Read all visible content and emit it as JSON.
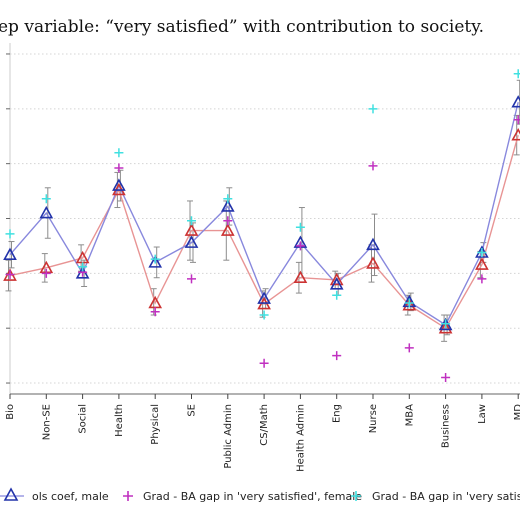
{
  "chart_data": {
    "type": "line",
    "title": "ep variable: “very satisfied” with contribution to society.",
    "categories": [
      "Bio",
      "Non-SE",
      "Social",
      "Health",
      "Physical",
      "SE",
      "Public Admin",
      "CS/Math",
      "Health Admin",
      "Eng",
      "Nurse",
      "MBA",
      "Business",
      "Law",
      "MD"
    ],
    "ylim": [
      -0.06,
      0.26
    ],
    "grid": true,
    "legend_position": "bottom",
    "series": [
      {
        "name": "",
        "marker": "triangle",
        "color": "#cc3333",
        "line_color": "#e89494",
        "values": [
          0.048,
          0.055,
          0.064,
          0.126,
          0.023,
          0.089,
          0.089,
          0.022,
          0.046,
          0.044,
          0.059,
          0.021,
          0.0,
          0.058,
          0.176
        ],
        "ci_low": [
          0.034,
          0.042,
          0.052,
          0.11,
          0.012,
          0.062,
          0.062,
          0.01,
          0.032,
          0.036,
          0.042,
          0.012,
          -0.012,
          0.046,
          0.158
        ],
        "ci_high": [
          0.062,
          0.068,
          0.076,
          0.142,
          0.036,
          0.116,
          0.116,
          0.034,
          0.06,
          0.052,
          0.076,
          0.03,
          0.012,
          0.07,
          0.194
        ]
      },
      {
        "name": "ols coef, male",
        "marker": "triangle",
        "color": "#2233aa",
        "line_color": "#8888dd",
        "values": [
          0.067,
          0.105,
          0.05,
          0.13,
          0.06,
          0.078,
          0.111,
          0.027,
          0.078,
          0.04,
          0.076,
          0.024,
          0.003,
          0.069,
          0.206
        ],
        "ci_low": [
          0.055,
          0.082,
          0.038,
          0.116,
          0.046,
          0.06,
          0.094,
          0.018,
          0.046,
          0.03,
          0.048,
          0.016,
          -0.006,
          0.06,
          0.186
        ],
        "ci_high": [
          0.079,
          0.128,
          0.062,
          0.144,
          0.074,
          0.096,
          0.128,
          0.036,
          0.11,
          0.05,
          0.104,
          0.032,
          0.012,
          0.078,
          0.226
        ]
      },
      {
        "name": "Grad - BA gap in 'very satisfied', female",
        "marker": "plus",
        "color": "#c030c0",
        "values": [
          0.049,
          0.05,
          0.051,
          0.146,
          0.015,
          0.045,
          0.098,
          -0.032,
          0.075,
          -0.025,
          0.148,
          -0.018,
          -0.045,
          0.045,
          0.19
        ]
      },
      {
        "name": "Grad - BA gap in 'very satisfied', male",
        "marker": "plus",
        "color": "#40e0e0",
        "values": [
          0.086,
          0.118,
          0.056,
          0.16,
          0.063,
          0.098,
          0.118,
          0.012,
          0.092,
          0.03,
          0.2,
          0.023,
          0.004,
          0.069,
          0.232
        ]
      }
    ]
  },
  "legend": {
    "item_1": "ols coef, male",
    "item_2": "Grad - BA gap in 'very satisfied', female",
    "item_3": "Grad - BA gap in 'very satisfied', male"
  }
}
